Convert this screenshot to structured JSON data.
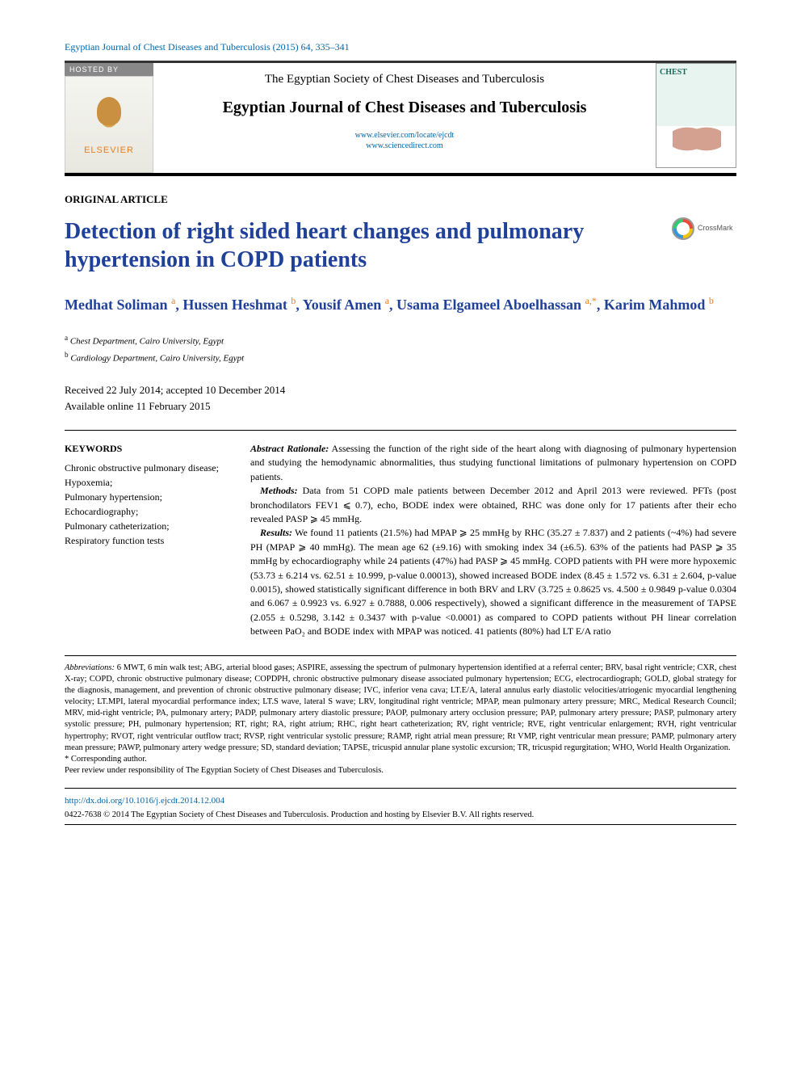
{
  "journal_ref": "Egyptian Journal of Chest Diseases and Tuberculosis (2015) 64, 335–341",
  "hosted_by": "HOSTED BY",
  "publisher_name": "ELSEVIER",
  "society": "The Egyptian Society of Chest Diseases and Tuberculosis",
  "journal_name": "Egyptian Journal of Chest Diseases and Tuberculosis",
  "journal_link1": "www.elsevier.com/locate/ejcdt",
  "journal_link2": "www.sciencedirect.com",
  "cover_title": "CHEST",
  "article_type": "ORIGINAL ARTICLE",
  "article_title": "Detection of right sided heart changes and pulmonary hypertension in COPD patients",
  "crossmark_label": "CrossMark",
  "authors_html": "Medhat Soliman <sup>a</sup>, Hussen Heshmat <sup>b</sup>, Yousif Amen <sup>a</sup>, Usama Elgameel Aboelhassan <sup>a,*</sup>, Karim Mahmod <sup>b</sup>",
  "affil_a": "Chest Department, Cairo University, Egypt",
  "affil_b": "Cardiology Department, Cairo University, Egypt",
  "dates_line1": "Received 22 July 2014; accepted 10 December 2014",
  "dates_line2": "Available online 11 February 2015",
  "keywords_head": "KEYWORDS",
  "keywords": "Chronic obstructive pulmonary disease;\nHypoxemia;\nPulmonary hypertension;\nEchocardiography;\nPulmonary catheterization;\nRespiratory function tests",
  "abstract": {
    "rationale_label": "Abstract   Rationale:",
    "rationale": "Assessing the function of the right side of the heart along with diagnosing of pulmonary hypertension and studying the hemodynamic abnormalities, thus studying functional limitations of pulmonary hypertension on COPD patients.",
    "methods_label": "Methods:",
    "methods": "Data from 51 COPD male patients between December 2012 and April 2013 were reviewed. PFTs (post bronchodilators FEV1 ⩽ 0.7), echo, BODE index were obtained, RHC was done only for 17 patients after their echo revealed PASP ⩾ 45 mmHg.",
    "results_label": "Results:",
    "results": "We found 11 patients (21.5%) had MPAP ⩾ 25 mmHg by RHC (35.27 ± 7.837) and 2 patients (~4%) had severe PH (MPAP ⩾ 40 mmHg). The mean age 62 (±9.16) with smoking index 34 (±6.5). 63% of the patients had PASP ⩾ 35 mmHg by echocardiography while 24 patients (47%) had PASP ⩾ 45 mmHg. COPD patients with PH were more hypoxemic (53.73 ± 6.214 vs. 62.51 ± 10.999, p-value 0.00013), showed increased BODE index (8.45 ± 1.572 vs. 6.31 ± 2.604, p-value 0.0015), showed statistically significant difference in both BRV and LRV (3.725 ± 0.8625 vs. 4.500 ± 0.9849 p-value 0.0304 and 6.067 ± 0.9923 vs. 6.927 ± 0.7888, 0.006 respectively), showed a significant difference in the measurement of TAPSE (2.055 ± 0.5298, 3.142 ± 0.3437 with p-value <0.0001) as compared to COPD patients without PH linear correlation between PaO₂ and BODE index with MPAP was noticed. 41 patients (80%) had LT E/A ratio"
  },
  "abbrev_label": "Abbreviations:",
  "abbreviations": "6 MWT, 6 min walk test; ABG, arterial blood gases; ASPIRE, assessing the spectrum of pulmonary hypertension identified at a referral center; BRV, basal right ventricle; CXR, chest X-ray; COPD, chronic obstructive pulmonary disease; COPDPH, chronic obstructive pulmonary disease associated pulmonary hypertension; ECG, electrocardiograph; GOLD, global strategy for the diagnosis, management, and prevention of chronic obstructive pulmonary disease; IVC, inferior vena cava; LT.E/A, lateral annulus early diastolic velocities/atriogenic myocardial lengthening velocity; LT.MPI, lateral myocardial performance index; LT.S wave, lateral S wave; LRV, longitudinal right ventricle; MPAP, mean pulmonary artery pressure; MRC, Medical Research Council; MRV, mid-right ventricle; PA, pulmonary artery; PADP, pulmonary artery diastolic pressure; PAOP, pulmonary artery occlusion pressure; PAP, pulmonary artery pressure; PASP, pulmonary artery systolic pressure; PH, pulmonary hypertension; RT, right; RA, right atrium; RHC, right heart catheterization; RV, right ventricle; RVE, right ventricular enlargement; RVH, right ventricular hypertrophy; RVOT, right ventricular outflow tract; RVSP, right ventricular systolic pressure; RAMP, right atrial mean pressure; Rt VMP, right ventricular mean pressure; PAMP, pulmonary artery mean pressure; PAWP, pulmonary artery wedge pressure; SD, standard deviation; TAPSE, tricuspid annular plane systolic excursion; TR, tricuspid regurgitation; WHO, World Health Organization.",
  "corresponding": "* Corresponding author.",
  "peer_review": "Peer review under responsibility of The Egyptian Society of Chest Diseases and Tuberculosis.",
  "doi": "http://dx.doi.org/10.1016/j.ejcdt.2014.12.004",
  "copyright": "0422-7638 © 2014 The Egyptian Society of Chest Diseases and Tuberculosis. Production and hosting by Elsevier B.V. All rights reserved.",
  "colors": {
    "title_blue": "#20419a",
    "link_blue": "#0066aa",
    "elsevier_orange": "#e67e22",
    "sup_orange": "#e67e22"
  }
}
